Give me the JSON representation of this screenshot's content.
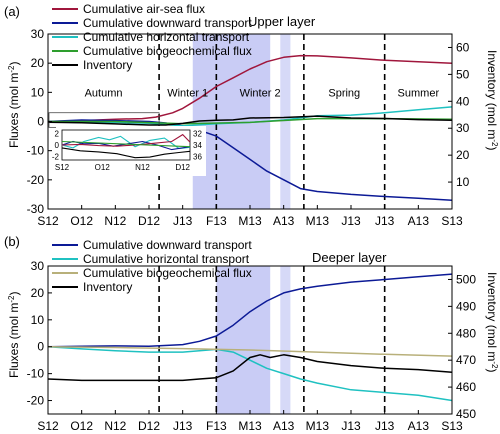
{
  "chart_data": [
    {
      "type": "line",
      "panel_label": "(a)",
      "title": "Upper layer",
      "xlabel": "",
      "ylabel": "Fluxes (mol m",
      "ylabel_sup": "-2",
      "ylabel_close": ")",
      "y2label": "Inventory (mol m",
      "y2label_sup": "-2",
      "y2label_close": ")",
      "x_ticks": [
        "S12",
        "O12",
        "N12",
        "D12",
        "J13",
        "F13",
        "M13",
        "A13",
        "M13",
        "J13",
        "J13",
        "A13",
        "S13"
      ],
      "ylim": [
        -30,
        30
      ],
      "yticks": [
        -30,
        -20,
        -10,
        0,
        10,
        20,
        30
      ],
      "y2lim": [
        0,
        65
      ],
      "y2ticks": [
        10,
        20,
        30,
        40,
        50,
        60
      ],
      "season_labels": [
        "Autumn",
        "Winter 1",
        "Winter 2",
        "Spring",
        "Summer"
      ],
      "season_dividers": [
        3.3,
        5.0,
        7.6,
        10.0
      ],
      "shaded_spans": [
        [
          4.3,
          6.6
        ],
        [
          6.9,
          7.2
        ]
      ],
      "series": [
        {
          "name": "Cumulative air-sea flux",
          "color": "#a0163c",
          "axis": "left",
          "x": [
            0,
            1,
            2,
            2.8,
            3.2,
            3.7,
            4.0,
            4.5,
            5.0,
            5.5,
            6.0,
            6.5,
            7.0,
            7.5,
            8,
            9,
            10,
            11,
            12
          ],
          "y": [
            0,
            0.3,
            0.8,
            1,
            1.5,
            3,
            4.5,
            8,
            12,
            15,
            18,
            20.5,
            22,
            22.6,
            22.5,
            21.8,
            21,
            20.5,
            20
          ]
        },
        {
          "name": "Cumulative downward transport",
          "color": "#0c1a96",
          "axis": "left",
          "x": [
            0,
            1,
            2,
            3,
            3.5,
            4,
            4.5,
            5,
            5.5,
            6,
            6.5,
            7,
            7.5,
            8,
            9,
            10,
            11,
            12
          ],
          "y": [
            0,
            0.5,
            0.3,
            0,
            -0.5,
            -1.5,
            -3,
            -5,
            -9,
            -13,
            -17,
            -20,
            -23,
            -24,
            -25,
            -25.7,
            -26.3,
            -27
          ]
        },
        {
          "name": "Cumulative horizontal transport",
          "color": "#1fc1c1",
          "axis": "left",
          "x": [
            0,
            1,
            2,
            3,
            4,
            5,
            6,
            7,
            8,
            9,
            10,
            11,
            12
          ],
          "y": [
            0,
            -0.4,
            -0.3,
            -0.6,
            -1.5,
            -0.8,
            -0.3,
            0.5,
            2,
            2.2,
            3,
            4,
            5
          ]
        },
        {
          "name": "Cumulative biogeochemical flux",
          "color": "#2e9e2e",
          "axis": "left",
          "x": [
            0,
            2,
            4,
            6,
            8,
            10,
            12
          ],
          "y": [
            0,
            0,
            -0.8,
            -0.3,
            1,
            1,
            0.8
          ]
        },
        {
          "name": "Inventory",
          "color": "#000000",
          "axis": "right",
          "x": [
            0,
            1,
            2,
            3,
            3.5,
            4,
            4.5,
            5,
            5.5,
            6,
            7,
            8,
            9,
            10,
            11,
            12
          ],
          "y": [
            32.2,
            32,
            31.6,
            31.2,
            31.2,
            31.8,
            32.7,
            33,
            33.1,
            33.8,
            34,
            34.5,
            33.8,
            33.6,
            33.2,
            33
          ]
        }
      ],
      "inset": {
        "x_ticks": [
          "S12",
          "O12",
          "N12",
          "D12"
        ],
        "yticks": [
          -2,
          0,
          2
        ],
        "y2ticks": [
          32,
          34,
          36
        ],
        "series": [
          {
            "name": "Cumulative horizontal transport",
            "color": "#1fc1c1",
            "x": [
              0,
              0.3,
              0.6,
              1,
              1.3,
              1.6,
              2,
              2.4,
              2.8,
              3.2,
              3.5
            ],
            "y": [
              0,
              -0.5,
              0.6,
              1.3,
              0.9,
              1.5,
              -0.3,
              0.8,
              1.2,
              -0.6,
              -0.4
            ]
          },
          {
            "name": "Cumulative downward transport",
            "color": "#0c1a96",
            "x": [
              0,
              0.3,
              0.6,
              1,
              1.4,
              1.8,
              2.2,
              2.6,
              3,
              3.5
            ],
            "y": [
              0,
              0.6,
              0.2,
              0.3,
              -0.2,
              0.2,
              0.6,
              0,
              -0.8,
              -0.3
            ]
          },
          {
            "name": "Cumulative air-sea flux",
            "color": "#a0163c",
            "x": [
              0,
              0.5,
              1,
              1.5,
              2,
              2.5,
              3,
              3.3,
              3.5
            ],
            "y": [
              0,
              0.1,
              -0.1,
              -0.2,
              0,
              0.3,
              0.6,
              1.8,
              0.5
            ]
          },
          {
            "name": "Cumulative biogeochemical flux",
            "color": "#2e9e2e",
            "x": [
              0,
              3.5
            ],
            "y": [
              0.6,
              -0.3
            ]
          },
          {
            "name": "Inventory",
            "color": "#000000",
            "x": [
              0,
              0.5,
              1,
              1.5,
              2,
              2.4,
              2.8,
              3.2,
              3.5
            ],
            "y": [
              -0.5,
              -1,
              -1.2,
              -1.5,
              -2.2,
              -2.1,
              -1.6,
              -1.3,
              -1.1
            ]
          }
        ]
      }
    },
    {
      "type": "line",
      "panel_label": "(b)",
      "title": "Deeper layer",
      "xlabel": "",
      "ylabel": "Fluxes (mol m",
      "ylabel_sup": "-2",
      "ylabel_close": ")",
      "y2label": "Inventory (mol m",
      "y2label_sup": "-2",
      "y2label_close": ")",
      "x_ticks": [
        "S12",
        "O12",
        "N12",
        "D12",
        "J13",
        "F13",
        "M13",
        "A13",
        "M13",
        "J13",
        "J13",
        "A13",
        "S13"
      ],
      "ylim": [
        -25,
        30
      ],
      "yticks": [
        -20,
        -10,
        0,
        10,
        20,
        30
      ],
      "y2lim": [
        450,
        505
      ],
      "y2ticks": [
        450,
        460,
        470,
        480,
        490,
        500
      ],
      "season_dividers": [
        3.3,
        5.0,
        7.6,
        10.0
      ],
      "shaded_spans": [
        [
          5.0,
          6.6
        ],
        [
          6.9,
          7.2
        ]
      ],
      "series": [
        {
          "name": "Cumulative downward transport",
          "color": "#0c1a96",
          "axis": "left",
          "x": [
            0,
            1,
            2,
            3,
            4,
            4.5,
            5,
            5.5,
            6,
            6.5,
            7,
            7.5,
            8,
            9,
            10,
            11,
            12
          ],
          "y": [
            0,
            0.2,
            0.3,
            0.2,
            0.8,
            2,
            4,
            8,
            13,
            17,
            20,
            21.5,
            22.5,
            24,
            25,
            26,
            27
          ]
        },
        {
          "name": "Cumulative horizontal transport",
          "color": "#1fc1c1",
          "axis": "left",
          "x": [
            0,
            1,
            2,
            3,
            4,
            5,
            5.5,
            6,
            6.5,
            7,
            7.5,
            8,
            9,
            10,
            11,
            12
          ],
          "y": [
            0,
            -0.8,
            -1.5,
            -2,
            -2,
            -1,
            -2,
            -5,
            -8,
            -10,
            -12,
            -13.5,
            -16,
            -17,
            -18,
            -20
          ]
        },
        {
          "name": "Cumulative biogeochemical flux",
          "color": "#b8b07a",
          "axis": "left",
          "x": [
            0,
            2,
            4,
            6,
            8,
            10,
            12
          ],
          "y": [
            0,
            -0.3,
            -0.7,
            -1.2,
            -2,
            -2.8,
            -3.5
          ]
        },
        {
          "name": "Inventory",
          "color": "#000000",
          "axis": "right",
          "x": [
            0,
            1,
            2,
            3,
            4,
            4.5,
            5,
            5.5,
            6,
            6.3,
            6.6,
            7,
            7.5,
            8,
            9,
            10,
            11,
            12
          ],
          "y": [
            463,
            462.5,
            462.5,
            462.5,
            462.5,
            463,
            463.5,
            466,
            471,
            472,
            471,
            472,
            471,
            469.5,
            468,
            467,
            466.5,
            465.5
          ]
        }
      ]
    }
  ]
}
